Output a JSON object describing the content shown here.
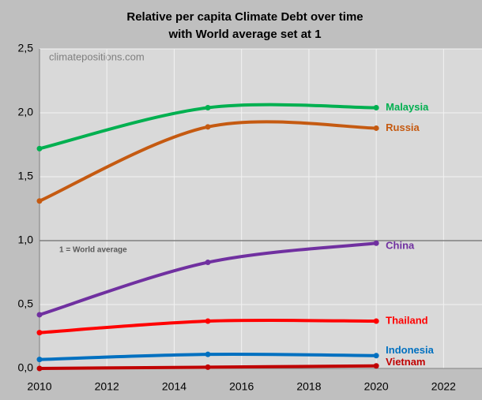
{
  "chart_data": {
    "type": "line",
    "title": "Relative per capita Climate Debt over time",
    "subtitle": "with World average set at 1",
    "annotations": [
      "climatepositions.com",
      "1 = World average"
    ],
    "reference_line": 1,
    "x": [
      2010,
      2015,
      2020
    ],
    "xlim": [
      2010,
      2023
    ],
    "xticks": [
      2010,
      2012,
      2014,
      2016,
      2018,
      2020,
      2022
    ],
    "ylim": [
      0,
      2.5
    ],
    "yticks": [
      {
        "value": 0,
        "label": "0,0"
      },
      {
        "value": 0.5,
        "label": "0,5"
      },
      {
        "value": 1,
        "label": "1,0"
      },
      {
        "value": 1.5,
        "label": "1,5"
      },
      {
        "value": 2,
        "label": "2,0"
      },
      {
        "value": 2.5,
        "label": "2,5"
      }
    ],
    "grid": true,
    "series": [
      {
        "name": "Malaysia",
        "color": "#00b050",
        "values": [
          1.72,
          2.04,
          2.04
        ]
      },
      {
        "name": "Russia",
        "color": "#c55a11",
        "values": [
          1.31,
          1.89,
          1.88
        ]
      },
      {
        "name": "China",
        "color": "#7030a0",
        "values": [
          0.42,
          0.83,
          0.98
        ]
      },
      {
        "name": "Thailand",
        "color": "#ff0000",
        "values": [
          0.28,
          0.37,
          0.37
        ]
      },
      {
        "name": "Indonesia",
        "color": "#0070c0",
        "values": [
          0.07,
          0.11,
          0.1
        ]
      },
      {
        "name": "Vietnam",
        "color": "#c00000",
        "values": [
          0.0,
          0.01,
          0.02
        ]
      }
    ]
  }
}
